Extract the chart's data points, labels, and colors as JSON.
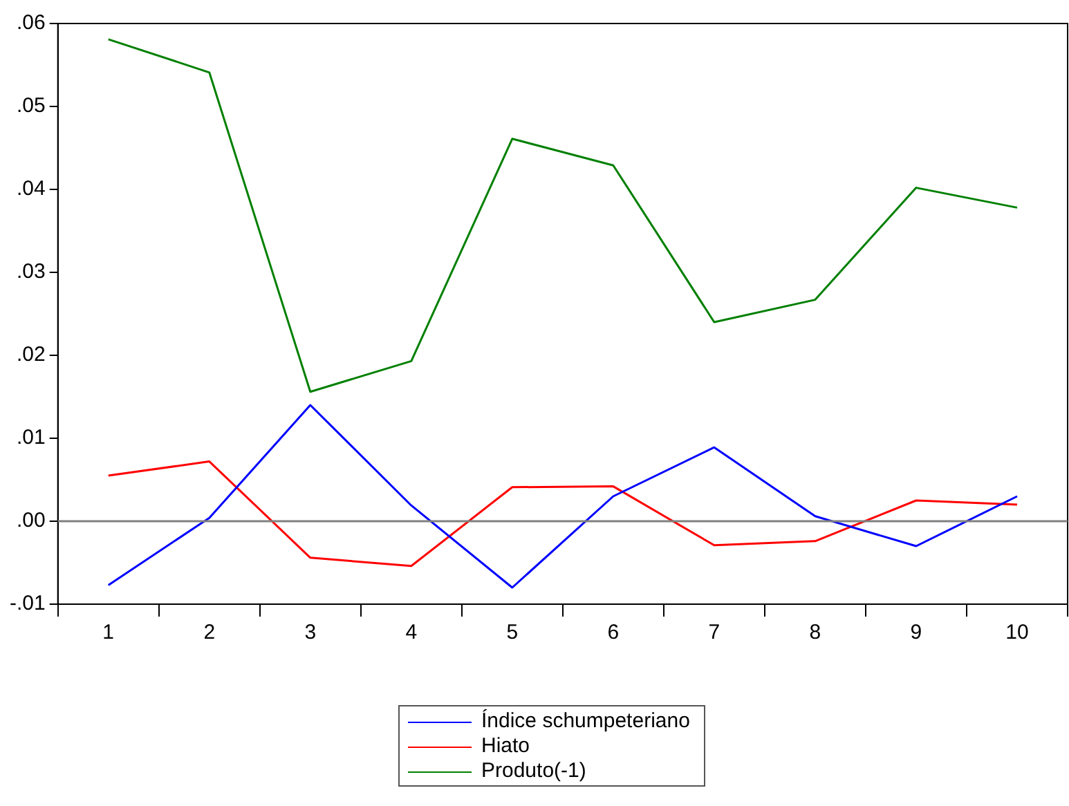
{
  "chart_data": {
    "type": "line",
    "categories": [
      "1",
      "2",
      "3",
      "4",
      "5",
      "6",
      "7",
      "8",
      "9",
      "10"
    ],
    "series": [
      {
        "name": "Índice schumpeteriano",
        "color": "#0000ff",
        "values": [
          -0.0077,
          0.0004,
          0.014,
          0.0019,
          -0.008,
          0.003,
          0.0089,
          0.0006,
          -0.003,
          0.003
        ]
      },
      {
        "name": "Hiato",
        "color": "#ff0000",
        "values": [
          0.0055,
          0.0072,
          -0.0044,
          -0.0054,
          0.0041,
          0.0042,
          -0.0029,
          -0.0024,
          0.0025,
          0.002
        ]
      },
      {
        "name": "Produto(-1)",
        "color": "#008000",
        "values": [
          0.0581,
          0.0541,
          0.0156,
          0.0193,
          0.0461,
          0.0429,
          0.024,
          0.0267,
          0.0402,
          0.0378
        ]
      }
    ],
    "ylim": [
      -0.01,
      0.06
    ],
    "yticks": [
      {
        "value": -0.01,
        "label": "-.01"
      },
      {
        "value": 0,
        "label": ".00"
      },
      {
        "value": 0.01,
        "label": ".01"
      },
      {
        "value": 0.02,
        "label": ".02"
      },
      {
        "value": 0.03,
        "label": ".03"
      },
      {
        "value": 0.04,
        "label": ".04"
      },
      {
        "value": 0.05,
        "label": ".05"
      },
      {
        "value": 0.06,
        "label": ".06"
      }
    ],
    "ref_lines": [
      {
        "axis": "y",
        "value": 0,
        "color": "#808080"
      }
    ],
    "grid": false,
    "legend": "bottom",
    "marker": "none",
    "line_style": "solid"
  }
}
